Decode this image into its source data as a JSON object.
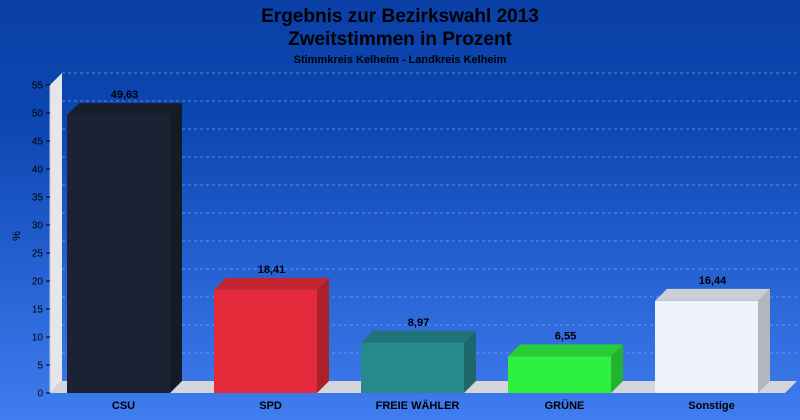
{
  "title": "Ergebnis zur Bezirkswahl 2013",
  "subtitle": "Zweitstimmen in Prozent",
  "caption": "Stimmkreis Kelheim - Landkreis Kelheim",
  "chart_data": {
    "type": "bar",
    "title": "Ergebnis zur Bezirkswahl 2013",
    "subtitle": "Zweitstimmen in Prozent",
    "caption": "Stimmkreis Kelheim - Landkreis Kelheim",
    "ylabel": "%",
    "xlabel": "",
    "ylim": [
      0,
      55
    ],
    "yticks": [
      0,
      5,
      10,
      15,
      20,
      25,
      30,
      35,
      40,
      45,
      50,
      55
    ],
    "grid": true,
    "categories": [
      "CSU",
      "SPD",
      "FREIE WÄHLER",
      "GRÜNE",
      "Sonstige"
    ],
    "values": [
      49.63,
      18.41,
      8.97,
      6.55,
      16.44
    ],
    "value_labels": [
      "49,63",
      "18,41",
      "8,97",
      "6,55",
      "16,44"
    ],
    "colors": [
      "#1b2233",
      "#e52b3b",
      "#26898e",
      "#2ef03f",
      "#eef2fb"
    ]
  }
}
